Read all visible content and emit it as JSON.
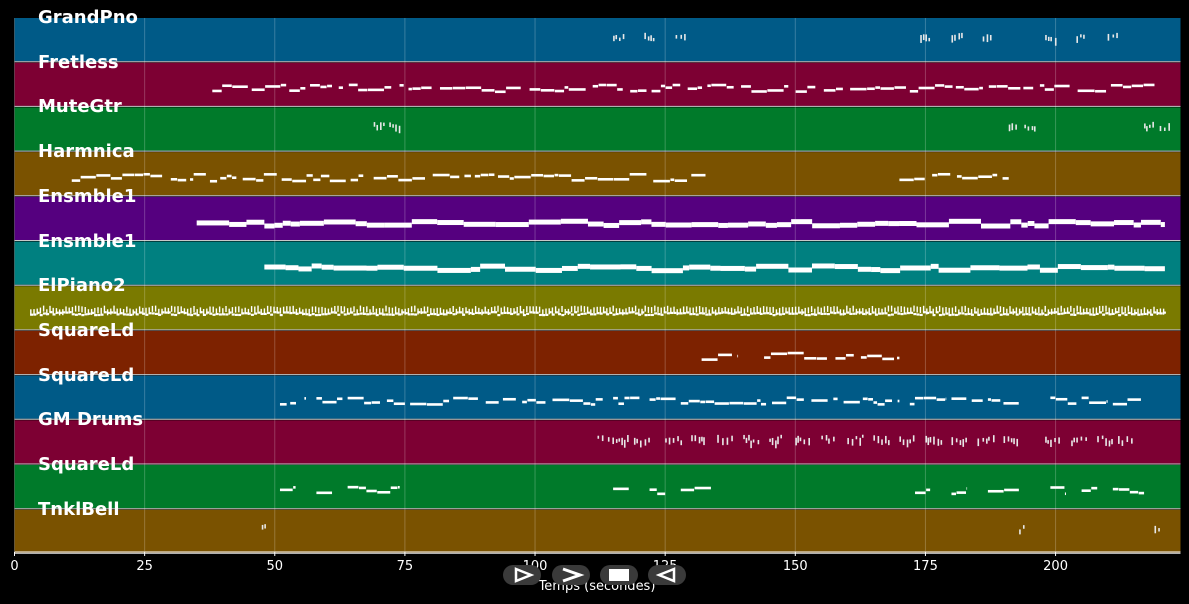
{
  "chart_data": {
    "type": "piano-roll",
    "xlabel": "Temps (secondes)",
    "xlim": [
      0,
      224
    ],
    "ticks": [
      0,
      25,
      50,
      75,
      100,
      125,
      150,
      175,
      200
    ],
    "tick_labels": [
      "0",
      "25",
      "50",
      "75",
      "100",
      "125",
      "150",
      "175",
      "200"
    ],
    "tracks": [
      {
        "name": "GrandPno",
        "color": "#005a87",
        "style": "dots",
        "segments": [
          [
            115,
            117
          ],
          [
            121,
            123
          ],
          [
            127,
            129
          ],
          [
            174,
            176
          ],
          [
            180,
            182
          ],
          [
            186,
            188
          ],
          [
            198,
            200
          ],
          [
            204,
            206
          ],
          [
            210,
            212
          ]
        ]
      },
      {
        "name": "Fretless",
        "color": "#7d0033",
        "style": "melody",
        "segments": [
          [
            38,
            219
          ]
        ]
      },
      {
        "name": "MuteGtr",
        "color": "#007a2a",
        "style": "dots",
        "segments": [
          [
            69,
            71
          ],
          [
            72,
            74
          ],
          [
            191,
            193
          ],
          [
            194,
            196
          ],
          [
            217,
            219
          ],
          [
            220,
            222
          ]
        ]
      },
      {
        "name": "Harmnica",
        "color": "#7a5200",
        "style": "melody",
        "segments": [
          [
            11,
            67
          ],
          [
            69,
            134
          ],
          [
            170,
            191
          ]
        ]
      },
      {
        "name": "Ensmble1",
        "color": "#55007f",
        "style": "thick",
        "segments": [
          [
            35,
            48
          ],
          [
            48,
            221
          ]
        ]
      },
      {
        "name": "Ensmble1",
        "color": "#008080",
        "style": "thick",
        "segments": [
          [
            48,
            221
          ]
        ]
      },
      {
        "name": "ElPiano2",
        "color": "#7a7a00",
        "style": "dense",
        "segments": [
          [
            3,
            221
          ]
        ]
      },
      {
        "name": "SquareLd",
        "color": "#7d2200",
        "style": "melody",
        "segments": [
          [
            132,
            139
          ],
          [
            144,
            170
          ]
        ]
      },
      {
        "name": "SquareLd",
        "color": "#005a87",
        "style": "melody",
        "segments": [
          [
            51,
            56
          ],
          [
            58,
            63
          ],
          [
            64,
            75
          ],
          [
            76,
            113
          ],
          [
            115,
            121
          ],
          [
            122,
            127
          ],
          [
            128,
            170
          ],
          [
            172,
            179
          ],
          [
            180,
            186
          ],
          [
            187,
            193
          ],
          [
            199,
            204
          ],
          [
            205,
            210
          ],
          [
            211,
            217
          ]
        ]
      },
      {
        "name": "GM Drums",
        "color": "#7d0033",
        "style": "dots",
        "segments": [
          [
            112,
            113
          ],
          [
            114,
            118
          ],
          [
            119,
            122
          ],
          [
            125,
            128
          ],
          [
            130,
            133
          ],
          [
            135,
            138
          ],
          [
            140,
            143
          ],
          [
            145,
            148
          ],
          [
            150,
            153
          ],
          [
            155,
            158
          ],
          [
            160,
            163
          ],
          [
            165,
            168
          ],
          [
            170,
            173
          ],
          [
            175,
            178
          ],
          [
            180,
            183
          ],
          [
            185,
            188
          ],
          [
            190,
            193
          ],
          [
            198,
            201
          ],
          [
            203,
            206
          ],
          [
            208,
            211
          ],
          [
            212,
            215
          ]
        ]
      },
      {
        "name": "SquareLd",
        "color": "#007a2a",
        "style": "melody",
        "segments": [
          [
            51,
            54
          ],
          [
            58,
            61
          ],
          [
            64,
            74
          ],
          [
            115,
            118
          ],
          [
            122,
            125
          ],
          [
            128,
            134
          ],
          [
            173,
            176
          ],
          [
            180,
            183
          ],
          [
            187,
            193
          ],
          [
            199,
            202
          ],
          [
            205,
            208
          ],
          [
            211,
            217
          ]
        ]
      },
      {
        "name": "TnklBell",
        "color": "#7a5200",
        "style": "dots",
        "segments": [
          [
            47.5,
            48
          ],
          [
            193,
            194
          ],
          [
            219,
            220
          ]
        ]
      }
    ]
  },
  "controls": [
    {
      "name": "play-outline",
      "label": "play-outline-icon"
    },
    {
      "name": "play",
      "label": "play-icon"
    },
    {
      "name": "stop",
      "label": "stop-icon"
    },
    {
      "name": "rewind",
      "label": "rewind-icon"
    }
  ]
}
